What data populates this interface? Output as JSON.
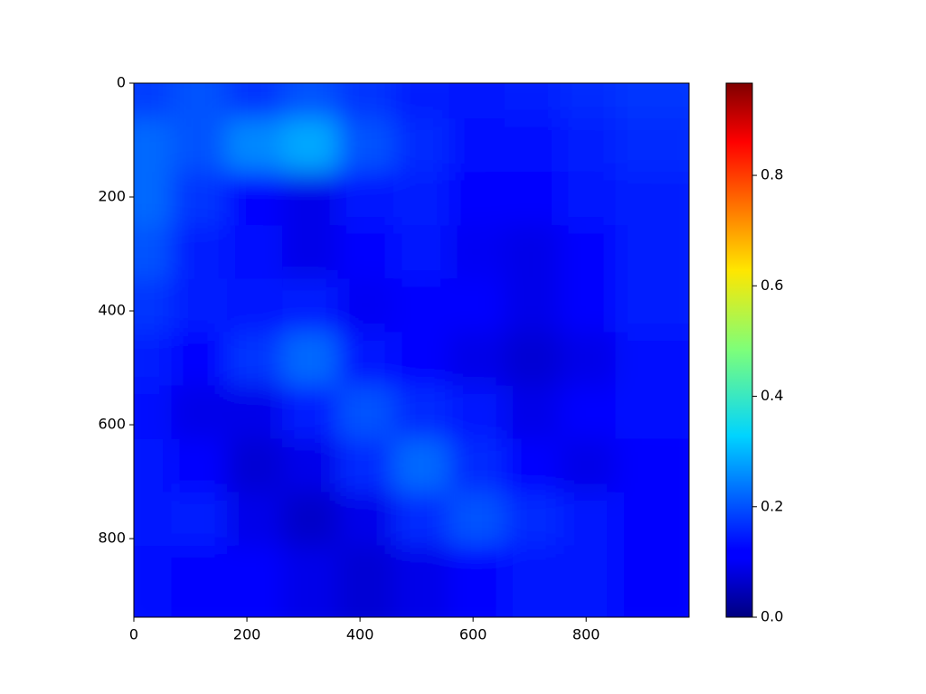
{
  "chart_data": {
    "type": "heatmap",
    "colormap": "jet",
    "xlim": [
      0,
      982
    ],
    "ylim": [
      938,
      0
    ],
    "xticks": [
      0,
      200,
      400,
      600,
      800
    ],
    "yticks": [
      0,
      200,
      400,
      600,
      800
    ],
    "clim": [
      0,
      0.967
    ],
    "cticks": [
      {
        "value": 0,
        "label": "0.0"
      },
      0.2,
      0.4,
      0.6,
      0.8
    ],
    "z": [
      [
        0.18,
        0.2,
        0.17,
        0.2,
        0.17,
        0.15,
        0.14,
        0.15,
        0.16,
        0.17
      ],
      [
        0.22,
        0.2,
        0.25,
        0.28,
        0.2,
        0.16,
        0.13,
        0.13,
        0.15,
        0.16
      ],
      [
        0.22,
        0.17,
        0.12,
        0.1,
        0.14,
        0.15,
        0.12,
        0.12,
        0.14,
        0.15
      ],
      [
        0.2,
        0.15,
        0.13,
        0.1,
        0.12,
        0.14,
        0.11,
        0.1,
        0.12,
        0.15
      ],
      [
        0.17,
        0.15,
        0.14,
        0.15,
        0.11,
        0.12,
        0.12,
        0.1,
        0.12,
        0.15
      ],
      [
        0.15,
        0.12,
        0.17,
        0.22,
        0.14,
        0.12,
        0.1,
        0.08,
        0.1,
        0.13
      ],
      [
        0.13,
        0.1,
        0.1,
        0.15,
        0.2,
        0.16,
        0.14,
        0.1,
        0.12,
        0.13
      ],
      [
        0.14,
        0.12,
        0.08,
        0.1,
        0.16,
        0.22,
        0.16,
        0.12,
        0.1,
        0.12
      ],
      [
        0.14,
        0.15,
        0.1,
        0.07,
        0.1,
        0.16,
        0.2,
        0.16,
        0.14,
        0.12
      ],
      [
        0.13,
        0.12,
        0.12,
        0.1,
        0.08,
        0.1,
        0.12,
        0.14,
        0.14,
        0.12
      ]
    ]
  }
}
